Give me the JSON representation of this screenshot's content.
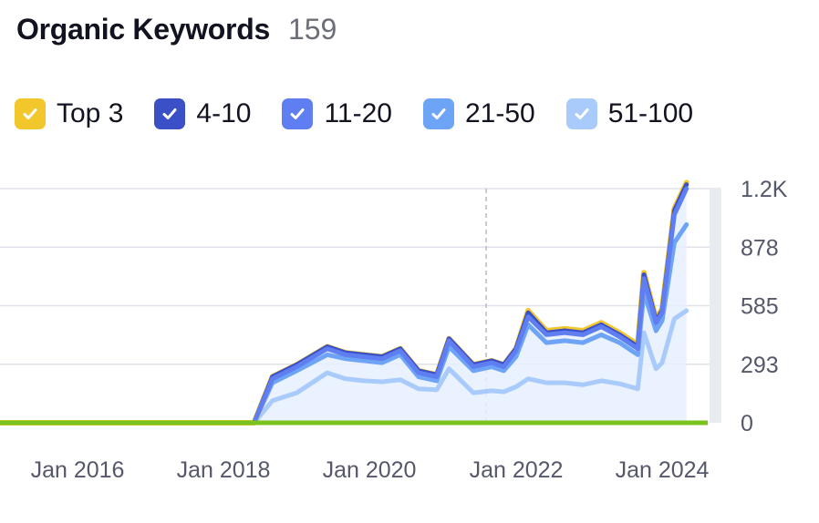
{
  "header": {
    "title": "Organic Keywords",
    "count": "159"
  },
  "legend": [
    {
      "label": "Top 3",
      "color": "#f2c72b"
    },
    {
      "label": "4-10",
      "color": "#3b4fc7"
    },
    {
      "label": "11-20",
      "color": "#5e7ef2"
    },
    {
      "label": "21-50",
      "color": "#6da4f5"
    },
    {
      "label": "51-100",
      "color": "#a9cbfb"
    }
  ],
  "chart_data": {
    "type": "area",
    "xlabel": "",
    "ylabel": "",
    "x_ticks": [
      "Jan 2016",
      "Jan 2018",
      "Jan 2020",
      "Jan 2022",
      "Jan 2024"
    ],
    "y_ticks": [
      "0",
      "293",
      "585",
      "878",
      "1.2K"
    ],
    "ylim": [
      0,
      1170
    ],
    "grid": true,
    "legend_position": "top",
    "x": [
      "2014-12",
      "2017-01",
      "2018-01",
      "2018-06",
      "2018-09",
      "2019-01",
      "2019-06",
      "2019-09",
      "2019-12",
      "2020-03",
      "2020-06",
      "2020-09",
      "2020-12",
      "2021-02",
      "2021-06",
      "2021-09",
      "2021-11",
      "2022-01",
      "2022-03",
      "2022-06",
      "2022-09",
      "2022-12",
      "2023-03",
      "2023-06",
      "2023-09",
      "2023-10",
      "2023-12",
      "2024-01",
      "2024-03",
      "2024-05"
    ],
    "series": [
      {
        "name": "Top 3",
        "color": "#f2c72b",
        "values": [
          0,
          0,
          0,
          0,
          230,
          290,
          380,
          350,
          340,
          330,
          370,
          260,
          240,
          420,
          290,
          310,
          290,
          370,
          560,
          460,
          470,
          460,
          500,
          450,
          390,
          750,
          520,
          570,
          1070,
          1200
        ]
      },
      {
        "name": "4-10",
        "color": "#3b4fc7",
        "values": [
          0,
          0,
          0,
          0,
          230,
          290,
          380,
          350,
          340,
          330,
          370,
          260,
          240,
          420,
          290,
          310,
          290,
          370,
          550,
          450,
          460,
          450,
          490,
          440,
          380,
          740,
          510,
          560,
          1060,
          1190
        ]
      },
      {
        "name": "11-20",
        "color": "#5e7ef2",
        "values": [
          0,
          0,
          0,
          0,
          220,
          280,
          370,
          340,
          330,
          320,
          360,
          250,
          230,
          410,
          280,
          300,
          280,
          360,
          530,
          440,
          450,
          440,
          480,
          430,
          370,
          720,
          500,
          550,
          1040,
          1170
        ]
      },
      {
        "name": "21-50",
        "color": "#6da4f5",
        "values": [
          0,
          0,
          0,
          0,
          200,
          260,
          340,
          320,
          310,
          300,
          340,
          230,
          210,
          380,
          260,
          280,
          260,
          330,
          490,
          400,
          410,
          400,
          440,
          400,
          340,
          650,
          460,
          510,
          900,
          990
        ]
      },
      {
        "name": "51-100",
        "color": "#a9cbfb",
        "values": [
          0,
          0,
          0,
          0,
          110,
          150,
          250,
          220,
          210,
          205,
          215,
          170,
          165,
          270,
          150,
          160,
          155,
          180,
          220,
          200,
          200,
          190,
          210,
          195,
          170,
          450,
          270,
          300,
          520,
          560
        ]
      }
    ],
    "baseline_color": "#7ac21c"
  }
}
